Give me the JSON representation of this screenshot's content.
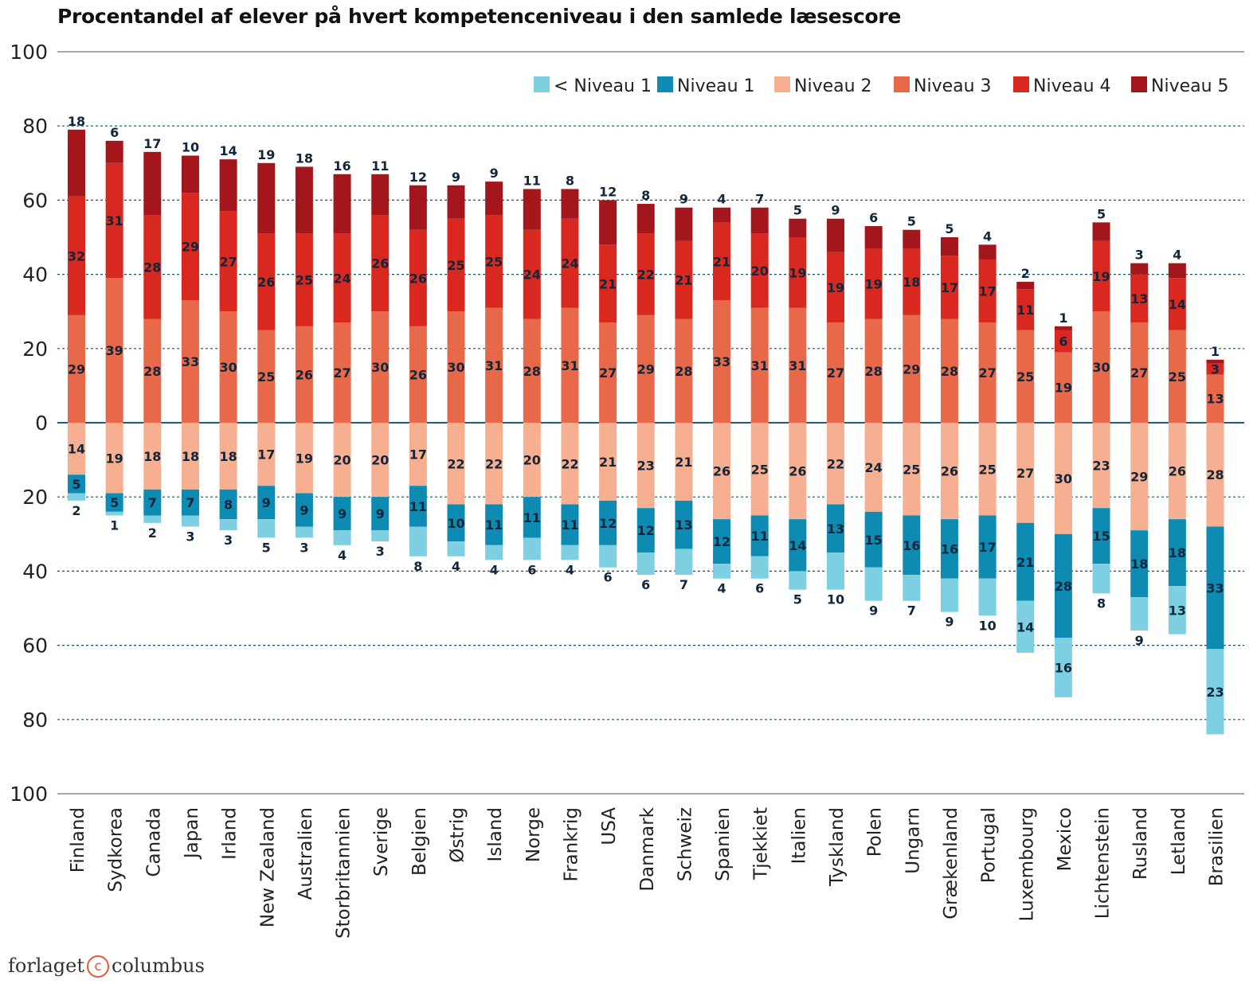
{
  "chart_data": {
    "type": "bar",
    "stacked": "diverging",
    "title": "Procentandel af elever på hvert kompetenceniveau i den samlede læsescore",
    "xlabel": "",
    "ylabel": "",
    "ylim": [
      -100,
      100
    ],
    "yticks": [
      100,
      80,
      60,
      40,
      20,
      0,
      20,
      40,
      60,
      80,
      100
    ],
    "grid": true,
    "legend_position": "top-right",
    "categories": [
      "Finland",
      "Sydkorea",
      "Canada",
      "Japan",
      "Irland",
      "New Zealand",
      "Australien",
      "Storbritannien",
      "Sverige",
      "Belgien",
      "Østrig",
      "Island",
      "Norge",
      "Frankrig",
      "USA",
      "Danmark",
      "Schweiz",
      "Spanien",
      "Tjekkiet",
      "Italien",
      "Tyskland",
      "Polen",
      "Ungarn",
      "Grækenland",
      "Portugal",
      "Luxembourg",
      "Mexico",
      "Lichtenstein",
      "Rusland",
      "Letland",
      "Brasilien"
    ],
    "series": [
      {
        "name": "< Niveau 1",
        "direction": "negative",
        "color": "#7fcfe2",
        "values": [
          2,
          1,
          2,
          3,
          3,
          5,
          3,
          4,
          3,
          8,
          4,
          4,
          6,
          4,
          6,
          6,
          7,
          4,
          6,
          5,
          10,
          9,
          7,
          9,
          10,
          14,
          16,
          8,
          9,
          13,
          23
        ]
      },
      {
        "name": "Niveau 1",
        "direction": "negative",
        "color": "#0d8bb3",
        "values": [
          5,
          5,
          7,
          7,
          8,
          9,
          9,
          9,
          9,
          11,
          10,
          11,
          11,
          11,
          12,
          12,
          13,
          12,
          11,
          14,
          13,
          15,
          16,
          16,
          17,
          21,
          28,
          15,
          18,
          18,
          33
        ]
      },
      {
        "name": "Niveau 2",
        "direction": "negative",
        "color": "#f6b091",
        "values": [
          14,
          19,
          18,
          18,
          18,
          17,
          19,
          20,
          20,
          17,
          22,
          22,
          20,
          22,
          21,
          23,
          21,
          26,
          25,
          26,
          22,
          24,
          25,
          26,
          25,
          27,
          30,
          23,
          29,
          26,
          28
        ]
      },
      {
        "name": "Niveau 3",
        "direction": "positive",
        "color": "#e8684a",
        "values": [
          29,
          39,
          28,
          33,
          30,
          25,
          26,
          27,
          30,
          26,
          30,
          31,
          28,
          31,
          27,
          29,
          28,
          33,
          31,
          31,
          27,
          28,
          29,
          28,
          27,
          25,
          19,
          30,
          27,
          25,
          13
        ]
      },
      {
        "name": "Niveau 4",
        "direction": "positive",
        "color": "#d8281f",
        "values": [
          32,
          31,
          28,
          29,
          27,
          26,
          25,
          24,
          26,
          26,
          25,
          25,
          24,
          24,
          21,
          22,
          21,
          21,
          20,
          19,
          19,
          19,
          18,
          17,
          17,
          11,
          6,
          19,
          13,
          14,
          3
        ]
      },
      {
        "name": "Niveau 5",
        "direction": "positive",
        "color": "#a3161c",
        "values": [
          18,
          6,
          17,
          10,
          14,
          19,
          18,
          16,
          11,
          12,
          9,
          9,
          11,
          8,
          12,
          8,
          9,
          4,
          7,
          5,
          9,
          6,
          5,
          5,
          4,
          2,
          1,
          5,
          3,
          4,
          1
        ]
      }
    ]
  },
  "footer": {
    "brand_left": "forlaget",
    "brand_symbol": "c",
    "brand_right": "columbus"
  }
}
